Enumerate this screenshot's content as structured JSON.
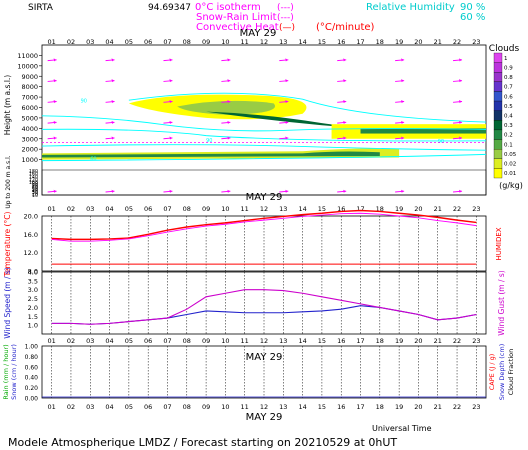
{
  "header": {
    "station": "SIRTA",
    "coords_text": "94.69347",
    "legend_iso": "0°C isotherm",
    "legend_snow": "Snow-Rain Limit",
    "legend_conv": "Convective Heat",
    "legend_conv_unit": "(°C/minute)",
    "legend_iso_sample": "(---)",
    "legend_snow_sample": "(---)",
    "legend_conv_sample": "(—)",
    "rh_label": "Relative Humidity",
    "rh_90": "90 %",
    "rh_60": "60 %"
  },
  "footer": {
    "universal_time": "Universal Time",
    "forecast_text": "Modele Atmospherique LMDZ / Forecast starting on 20210529 at 0hUT"
  },
  "colors": {
    "hum": "#00ffff",
    "temp": "#ff0000",
    "temp2": "#ff00ff",
    "wind": "#2222cc",
    "gust": "#cc00cc",
    "cloud_low": "#ffff00",
    "cloud_mid": "#66aa44",
    "cloud_high": "#006633"
  },
  "chart_data": [
    {
      "type": "heatmap",
      "title": "MAY 29",
      "x_ticks": [
        "01",
        "02",
        "03",
        "04",
        "05",
        "06",
        "07",
        "08",
        "09",
        "10",
        "11",
        "12",
        "13",
        "14",
        "15",
        "16",
        "17",
        "18",
        "19",
        "20",
        "21",
        "22",
        "23"
      ],
      "ylabel": "Height (m a.s.l.)",
      "ylabel_low": "Up to 200 m a.s.l.",
      "y_ticks": [
        1000,
        2000,
        3000,
        4000,
        5000,
        6000,
        7000,
        8000,
        9000,
        10000,
        11000
      ],
      "y_ticks_low": [
        10,
        20,
        30,
        40,
        50,
        60,
        70,
        80,
        90,
        100,
        120,
        140,
        160,
        180
      ],
      "colorbar_title": "Clouds",
      "colorbar_unit": "(g/kg)",
      "colorbar_ticks": [
        "0.01",
        "0.02",
        "0.05",
        "0.1",
        "0.2",
        "0.3",
        "0.4",
        "0.5",
        "0.6",
        "0.7",
        "0.8",
        "0.9",
        "1"
      ],
      "colorbar_colors": [
        "#ffff00",
        "#ddee22",
        "#99cc44",
        "#55aa44",
        "#228844",
        "#006633",
        "#113366",
        "#2233aa",
        "#3355cc",
        "#6633cc",
        "#9933cc",
        "#bb33dd",
        "#dd44ee"
      ],
      "wind_vectors": true,
      "hum_labels": [
        "90",
        "60"
      ]
    },
    {
      "type": "line",
      "title": "MAY 29",
      "x_ticks": [
        "01",
        "02",
        "03",
        "04",
        "05",
        "06",
        "07",
        "08",
        "09",
        "10",
        "11",
        "12",
        "13",
        "14",
        "15",
        "16",
        "17",
        "18",
        "19",
        "20",
        "21",
        "22",
        "23"
      ],
      "ylabel": "Temperature (°C)",
      "ylabel_right": "HUMIDEX",
      "y_ticks": [
        "8.0",
        "12.0",
        "16.0",
        "20.0"
      ],
      "ylim": [
        8,
        20
      ],
      "series": [
        {
          "values": [
            15.1,
            14.9,
            14.9,
            15.0,
            15.2,
            16.0,
            16.9,
            17.6,
            18.1,
            18.5,
            19.0,
            19.5,
            19.9,
            20.3,
            20.6,
            21.0,
            21.2,
            21.0,
            20.6,
            20.2,
            19.7,
            19.1,
            18.6
          ]
        },
        {
          "values": [
            14.9,
            14.5,
            14.5,
            14.7,
            15.0,
            15.7,
            16.5,
            17.2,
            17.8,
            18.2,
            18.7,
            19.1,
            19.5,
            19.9,
            20.2,
            20.5,
            20.6,
            20.4,
            20.0,
            19.6,
            19.0,
            18.5,
            17.9
          ]
        },
        {
          "values": [
            9.5,
            9.5,
            9.5,
            9.5,
            9.5,
            9.5,
            9.5,
            9.5,
            9.5,
            9.5,
            9.5,
            9.5,
            9.5,
            9.5,
            9.5,
            9.5,
            9.5,
            9.5,
            9.5,
            9.5,
            9.5,
            9.5,
            9.5
          ]
        }
      ]
    },
    {
      "type": "line",
      "x_ticks": [
        "01",
        "02",
        "03",
        "04",
        "05",
        "06",
        "07",
        "08",
        "09",
        "10",
        "11",
        "12",
        "13",
        "14",
        "15",
        "16",
        "17",
        "18",
        "19",
        "20",
        "21",
        "22",
        "23"
      ],
      "ylabel": "Wind Speed (m / s)",
      "ylabel_right": "Wind Gust (m / s)",
      "y_ticks": [
        "1.0",
        "1.5",
        "2.0",
        "2.5",
        "3.0",
        "3.5",
        "4.0"
      ],
      "ylim": [
        0.5,
        4.0
      ],
      "series": [
        {
          "values": [
            1.1,
            1.1,
            1.05,
            1.1,
            1.2,
            1.3,
            1.4,
            1.6,
            1.8,
            1.75,
            1.7,
            1.7,
            1.7,
            1.75,
            1.8,
            1.9,
            2.1,
            2.0,
            1.8,
            1.6,
            1.3,
            1.4,
            1.6
          ]
        },
        {
          "values": [
            1.1,
            1.1,
            1.05,
            1.1,
            1.2,
            1.3,
            1.4,
            1.9,
            2.6,
            2.8,
            3.0,
            3.0,
            2.95,
            2.8,
            2.6,
            2.4,
            2.2,
            2.0,
            1.8,
            1.6,
            1.3,
            1.4,
            1.6
          ]
        }
      ]
    },
    {
      "type": "bar",
      "title": "MAY 29",
      "x_ticks": [
        "01",
        "02",
        "03",
        "04",
        "05",
        "06",
        "07",
        "08",
        "09",
        "10",
        "11",
        "12",
        "13",
        "14",
        "15",
        "16",
        "17",
        "18",
        "19",
        "20",
        "21",
        "22",
        "23"
      ],
      "ylabel": "Rain (mm / hour)",
      "ylabel2": "Snow (cm / hour)",
      "ylabel_right": "CAPE (J / g)",
      "ylabel_right2": "Snow Depth (cm)",
      "ylabel_right3": "Cloud Fraction",
      "y_ticks": [
        "0.00",
        "0.20",
        "0.40",
        "0.60",
        "0.80",
        "1.00"
      ],
      "ylim": [
        0,
        1.0
      ],
      "values": [
        0,
        0,
        0,
        0,
        0,
        0,
        0,
        0,
        0,
        0,
        0,
        0,
        0,
        0,
        0,
        0,
        0,
        0,
        0,
        0,
        0,
        0,
        0
      ]
    }
  ]
}
